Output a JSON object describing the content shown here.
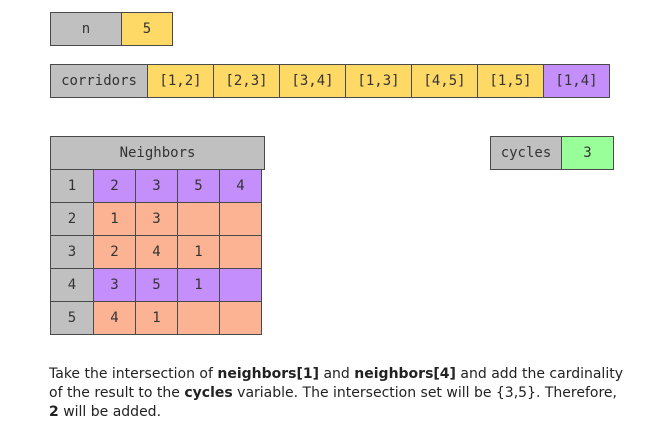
{
  "n": {
    "label": "n",
    "value": "5"
  },
  "corridors": {
    "label": "corridors",
    "items": [
      "[1,2]",
      "[2,3]",
      "[3,4]",
      "[1,3]",
      "[4,5]",
      "[1,5]",
      "[1,4]"
    ],
    "highlight_index": 6
  },
  "cycles": {
    "label": "cycles",
    "value": "3"
  },
  "neighbors": {
    "title": "Neighbors",
    "rows": [
      {
        "node": "1",
        "values": [
          "2",
          "3",
          "5",
          "4"
        ],
        "highlight": true
      },
      {
        "node": "2",
        "values": [
          "1",
          "3",
          "",
          ""
        ],
        "highlight": false
      },
      {
        "node": "3",
        "values": [
          "2",
          "4",
          "1",
          ""
        ],
        "highlight": false
      },
      {
        "node": "4",
        "values": [
          "3",
          "5",
          "1",
          ""
        ],
        "highlight": true
      },
      {
        "node": "5",
        "values": [
          "4",
          "1",
          "",
          ""
        ],
        "highlight": false
      }
    ]
  },
  "description": {
    "t1": "Take the intersection of ",
    "b1": "neighbors[1]",
    "t2": " and ",
    "b2": "neighbors[4]",
    "t3": " and add the cardinality of the result to the ",
    "b3": "cycles",
    "t4": " variable. The intersection set will be {3,5}. Therefore, ",
    "b4": "2",
    "t5": " will be added."
  },
  "colors": {
    "label_bg": "#c0c0c0",
    "value_bg": "#ffd966",
    "highlight_bg": "#c58ffb",
    "cell_bg": "#fbb394",
    "cycles_bg": "#99ff99"
  }
}
